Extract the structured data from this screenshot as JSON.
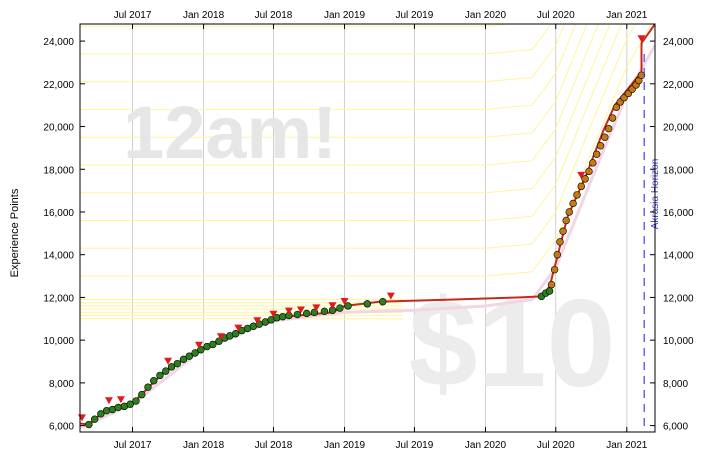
{
  "chart_data": {
    "type": "line",
    "title": "",
    "xlabel": "",
    "ylabel": "Experience Points",
    "xlim": [
      "2017-02-15",
      "2021-03-15"
    ],
    "ylim": [
      5700,
      24800
    ],
    "grid": "vertical-only",
    "x_ticks": [
      {
        "date": "2017-07-01",
        "label": "Jul 2017"
      },
      {
        "date": "2018-01-01",
        "label": "Jan 2018"
      },
      {
        "date": "2018-07-01",
        "label": "Jul 2018"
      },
      {
        "date": "2019-01-01",
        "label": "Jan 2019"
      },
      {
        "date": "2019-07-01",
        "label": "Jul 2019"
      },
      {
        "date": "2020-01-01",
        "label": "Jan 2020"
      },
      {
        "date": "2020-07-01",
        "label": "Jul 2020"
      },
      {
        "date": "2021-01-01",
        "label": "Jan 2021"
      }
    ],
    "y_ticks": [
      {
        "value": 6000,
        "label": "6,000"
      },
      {
        "value": 8000,
        "label": "8,000"
      },
      {
        "value": 10000,
        "label": "10,000"
      },
      {
        "value": 12000,
        "label": "12,000"
      },
      {
        "value": 14000,
        "label": "14,000"
      },
      {
        "value": 16000,
        "label": "16,000"
      },
      {
        "value": 18000,
        "label": "18,000"
      },
      {
        "value": 20000,
        "label": "20,000"
      },
      {
        "value": 22000,
        "label": "22,000"
      },
      {
        "value": 24000,
        "label": "24,000"
      }
    ],
    "watermarks": {
      "top": "12am!",
      "bottom": "$10"
    },
    "horizon": {
      "date": "2021-02-15",
      "label": "Akrasia Horizon"
    },
    "series": [
      {
        "role": "progress-line",
        "color": "#c8281e",
        "points": [
          [
            "2017-02-15",
            6100
          ],
          [
            "2017-03-10",
            6050
          ],
          [
            "2017-04-01",
            6400
          ],
          [
            "2017-05-01",
            6800
          ],
          [
            "2017-06-01",
            6950
          ],
          [
            "2017-07-01",
            7050
          ],
          [
            "2017-08-01",
            7600
          ],
          [
            "2017-09-15",
            8400
          ],
          [
            "2017-11-01",
            9000
          ],
          [
            "2017-12-15",
            9500
          ],
          [
            "2018-02-01",
            9900
          ],
          [
            "2018-03-15",
            10200
          ],
          [
            "2018-05-01",
            10600
          ],
          [
            "2018-06-15",
            10900
          ],
          [
            "2018-08-01",
            11100
          ],
          [
            "2018-10-01",
            11200
          ],
          [
            "2018-12-01",
            11300
          ],
          [
            "2019-01-01",
            11600
          ],
          [
            "2019-04-01",
            11800
          ],
          [
            "2019-10-01",
            11900
          ],
          [
            "2020-04-01",
            12000
          ],
          [
            "2020-05-25",
            12050
          ],
          [
            "2020-06-15",
            12500
          ],
          [
            "2020-08-01",
            15800
          ],
          [
            "2020-09-15",
            17600
          ],
          [
            "2020-11-01",
            19800
          ],
          [
            "2020-12-01",
            21000
          ],
          [
            "2021-01-01",
            21700
          ],
          [
            "2021-02-01",
            22400
          ],
          [
            "2021-02-08",
            22400
          ],
          [
            "2021-02-08",
            23900
          ],
          [
            "2021-03-15",
            24800
          ]
        ]
      },
      {
        "role": "datapoints-early",
        "color": "#2e7d1f",
        "points": [
          [
            "2017-03-10",
            6050
          ],
          [
            "2017-03-25",
            6300
          ],
          [
            "2017-04-10",
            6550
          ],
          [
            "2017-04-25",
            6700
          ],
          [
            "2017-05-10",
            6750
          ],
          [
            "2017-05-25",
            6850
          ],
          [
            "2017-06-10",
            6900
          ],
          [
            "2017-06-25",
            7000
          ],
          [
            "2017-07-10",
            7150
          ],
          [
            "2017-07-25",
            7450
          ],
          [
            "2017-08-10",
            7800
          ],
          [
            "2017-08-25",
            8100
          ],
          [
            "2017-09-10",
            8350
          ],
          [
            "2017-09-25",
            8550
          ],
          [
            "2017-10-10",
            8750
          ],
          [
            "2017-10-25",
            8900
          ],
          [
            "2017-11-10",
            9100
          ],
          [
            "2017-11-25",
            9250
          ],
          [
            "2017-12-10",
            9400
          ],
          [
            "2017-12-25",
            9550
          ],
          [
            "2018-01-10",
            9700
          ],
          [
            "2018-01-25",
            9800
          ],
          [
            "2018-02-10",
            9950
          ],
          [
            "2018-02-25",
            10100
          ],
          [
            "2018-03-10",
            10200
          ],
          [
            "2018-03-25",
            10300
          ],
          [
            "2018-04-10",
            10450
          ],
          [
            "2018-04-25",
            10550
          ],
          [
            "2018-05-10",
            10650
          ],
          [
            "2018-05-25",
            10750
          ],
          [
            "2018-06-10",
            10850
          ],
          [
            "2018-06-25",
            10950
          ],
          [
            "2018-07-10",
            11050
          ],
          [
            "2018-07-25",
            11100
          ],
          [
            "2018-08-10",
            11150
          ],
          [
            "2018-09-01",
            11200
          ],
          [
            "2018-09-25",
            11250
          ],
          [
            "2018-10-15",
            11300
          ],
          [
            "2018-11-10",
            11350
          ],
          [
            "2018-12-01",
            11400
          ],
          [
            "2018-12-20",
            11500
          ],
          [
            "2019-01-10",
            11600
          ],
          [
            "2019-03-01",
            11700
          ],
          [
            "2019-04-10",
            11800
          ],
          [
            "2020-05-25",
            12050
          ],
          [
            "2020-06-05",
            12200
          ],
          [
            "2020-06-15",
            12300
          ]
        ]
      },
      {
        "role": "datapoints-recent",
        "color": "#c47a14",
        "points": [
          [
            "2020-06-20",
            12600
          ],
          [
            "2020-06-28",
            13300
          ],
          [
            "2020-07-05",
            14000
          ],
          [
            "2020-07-12",
            14600
          ],
          [
            "2020-07-20",
            15100
          ],
          [
            "2020-07-28",
            15600
          ],
          [
            "2020-08-05",
            16000
          ],
          [
            "2020-08-15",
            16400
          ],
          [
            "2020-08-25",
            16800
          ],
          [
            "2020-09-05",
            17200
          ],
          [
            "2020-09-15",
            17550
          ],
          [
            "2020-09-25",
            17900
          ],
          [
            "2020-10-05",
            18300
          ],
          [
            "2020-10-15",
            18700
          ],
          [
            "2020-10-25",
            19100
          ],
          [
            "2020-11-05",
            19500
          ],
          [
            "2020-11-15",
            19900
          ],
          [
            "2020-11-25",
            20400
          ],
          [
            "2020-12-05",
            20900
          ],
          [
            "2020-12-15",
            21150
          ],
          [
            "2020-12-25",
            21350
          ],
          [
            "2021-01-05",
            21550
          ],
          [
            "2021-01-15",
            21750
          ],
          [
            "2021-01-25",
            21950
          ],
          [
            "2021-02-01",
            22150
          ],
          [
            "2021-02-08",
            22400
          ]
        ]
      },
      {
        "role": "derail-markers",
        "color": "#e01b1b",
        "points": [
          [
            "2017-02-20",
            6150
          ],
          [
            "2017-05-01",
            6950
          ],
          [
            "2017-06-01",
            7000
          ],
          [
            "2017-10-01",
            8800
          ],
          [
            "2017-12-20",
            9550
          ],
          [
            "2018-02-15",
            9950
          ],
          [
            "2018-04-01",
            10350
          ],
          [
            "2018-05-20",
            10700
          ],
          [
            "2018-07-01",
            11000
          ],
          [
            "2018-08-10",
            11150
          ],
          [
            "2018-09-10",
            11200
          ],
          [
            "2018-10-20",
            11300
          ],
          [
            "2018-12-01",
            11400
          ],
          [
            "2019-01-01",
            11600
          ],
          [
            "2019-05-01",
            11850
          ],
          [
            "2020-09-05",
            17500
          ],
          [
            "2021-02-08",
            23900
          ]
        ]
      }
    ],
    "road_center": [
      [
        "2017-02-15",
        5900
      ],
      [
        "2017-07-01",
        7000
      ],
      [
        "2018-01-01",
        9600
      ],
      [
        "2018-07-01",
        10900
      ],
      [
        "2019-01-01",
        11300
      ],
      [
        "2019-07-01",
        11400
      ],
      [
        "2020-01-01",
        11600
      ],
      [
        "2020-05-01",
        11900
      ],
      [
        "2020-07-01",
        13400
      ],
      [
        "2020-10-01",
        17500
      ],
      [
        "2021-01-01",
        21500
      ],
      [
        "2021-03-15",
        23800
      ]
    ]
  }
}
